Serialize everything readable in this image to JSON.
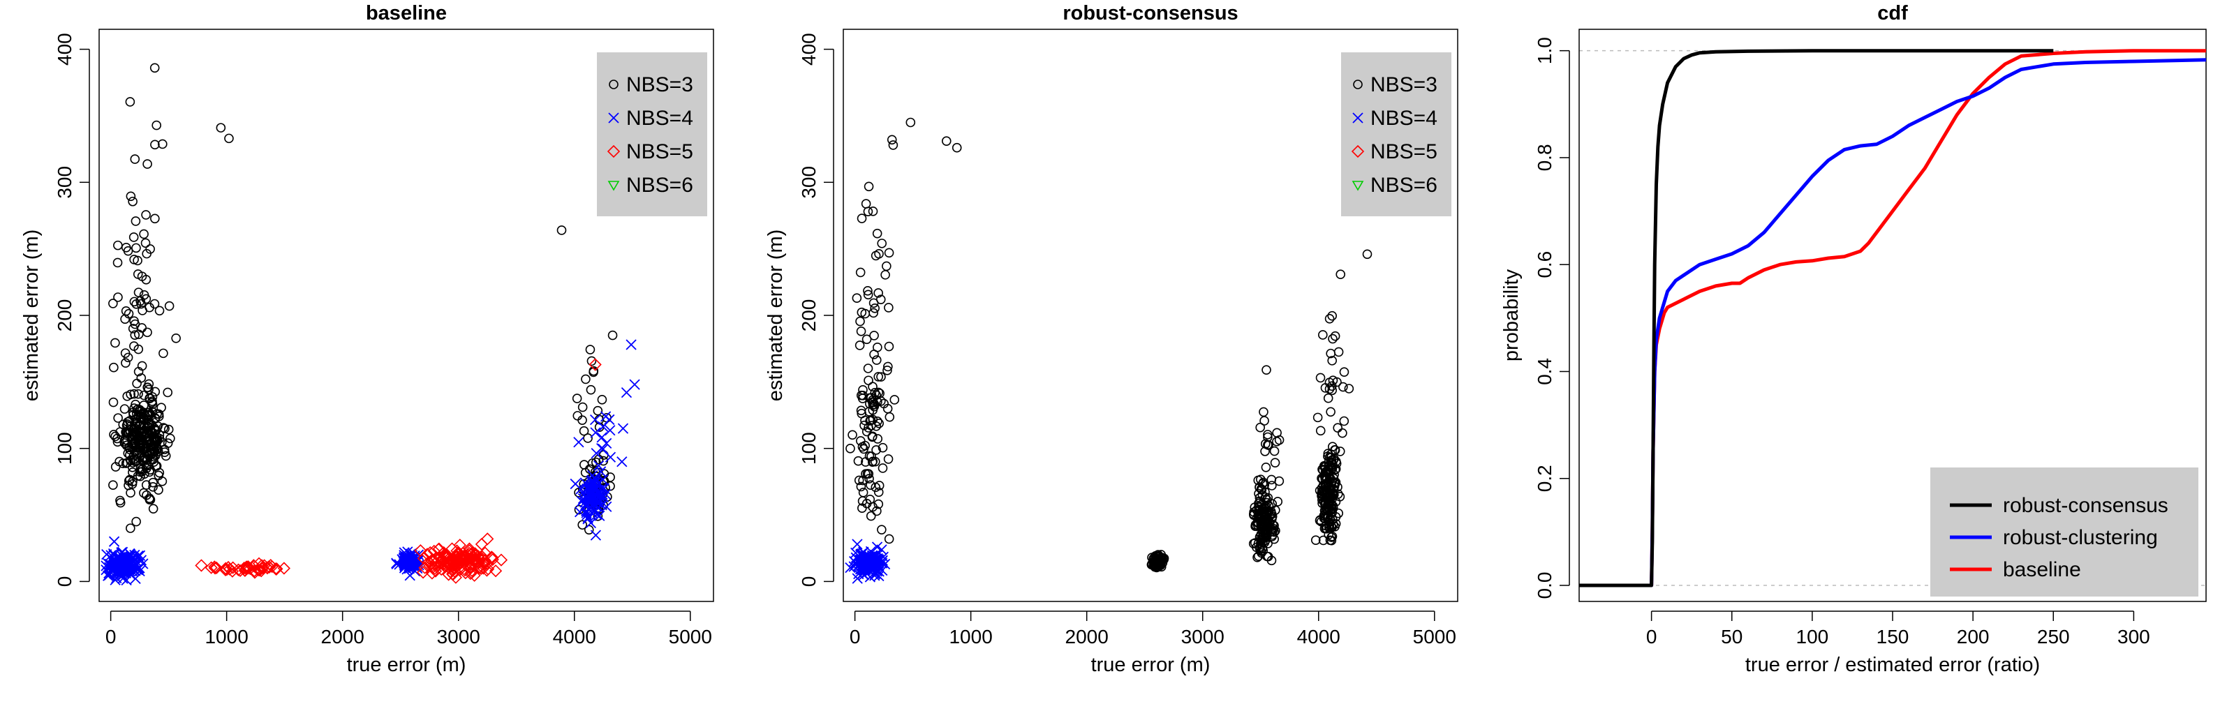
{
  "chart_data": [
    {
      "type": "scatter",
      "title": "baseline",
      "xlabel": "true error (m)",
      "ylabel": "estimated error (m)",
      "xlim": [
        -100,
        5200
      ],
      "ylim": [
        -15,
        415
      ],
      "xticks": [
        0,
        1000,
        2000,
        3000,
        4000,
        5000
      ],
      "yticks": [
        0,
        100,
        200,
        300,
        400
      ],
      "legend_position": "top-right",
      "series": [
        {
          "name": "NBS=3",
          "marker": "circle",
          "color": "#000000",
          "clusters": [
            {
              "x_mean": 280,
              "x_sd": 100,
              "y_mean": 105,
              "y_sd": 16,
              "n": 260
            },
            {
              "x_mean": 230,
              "x_sd": 120,
              "y_mean": 160,
              "y_sd": 40,
              "n": 55
            },
            {
              "x_mean": 280,
              "x_sd": 150,
              "y_mean": 270,
              "y_sd": 45,
              "n": 30
            },
            {
              "x_mean": 4180,
              "x_sd": 60,
              "y_mean": 70,
              "y_sd": 12,
              "n": 55
            },
            {
              "x_mean": 4180,
              "x_sd": 70,
              "y_mean": 140,
              "y_sd": 28,
              "n": 18
            }
          ],
          "points": [
            [
              380,
              386
            ],
            [
              950,
              341
            ],
            [
              1020,
              333
            ],
            [
              3890,
              264
            ],
            [
              170,
              40
            ],
            [
              220,
              45
            ],
            [
              4330,
              185
            ]
          ]
        },
        {
          "name": "NBS=4",
          "marker": "x",
          "color": "#0000ff",
          "clusters": [
            {
              "x_mean": 100,
              "x_sd": 70,
              "y_mean": 12,
              "y_sd": 4.5,
              "n": 160
            },
            {
              "x_mean": 2580,
              "x_sd": 45,
              "y_mean": 15,
              "y_sd": 3.5,
              "n": 90
            },
            {
              "x_mean": 4170,
              "x_sd": 55,
              "y_mean": 65,
              "y_sd": 9,
              "n": 90
            },
            {
              "x_mean": 4260,
              "x_sd": 70,
              "y_mean": 110,
              "y_sd": 12,
              "n": 14
            }
          ],
          "points": [
            [
              30,
              30
            ],
            [
              4490,
              178
            ],
            [
              4520,
              148
            ],
            [
              4450,
              142
            ],
            [
              4420,
              115
            ],
            [
              4410,
              90
            ]
          ]
        },
        {
          "name": "NBS=5",
          "marker": "diamond",
          "color": "#ff0000",
          "clusters": [
            {
              "x_mean": 1200,
              "x_sd": 140,
              "y_mean": 10,
              "y_sd": 1.3,
              "n": 45
            },
            {
              "x_mean": 3020,
              "x_sd": 140,
              "y_mean": 15,
              "y_sd": 5,
              "n": 150
            }
          ],
          "points": [
            [
              900,
              10
            ],
            [
              3250,
              32
            ],
            [
              3200,
              28
            ],
            [
              4180,
              163
            ]
          ]
        },
        {
          "name": "NBS=6",
          "marker": "triangle-down",
          "color": "#00cc00",
          "clusters": [],
          "points": []
        }
      ]
    },
    {
      "type": "scatter",
      "title": "robust-consensus",
      "xlabel": "true error (m)",
      "ylabel": "estimated error (m)",
      "xlim": [
        -100,
        5200
      ],
      "ylim": [
        -15,
        415
      ],
      "xticks": [
        0,
        1000,
        2000,
        3000,
        4000,
        5000
      ],
      "yticks": [
        0,
        100,
        200,
        300,
        400
      ],
      "legend_position": "top-right",
      "series": [
        {
          "name": "NBS=3",
          "marker": "circle",
          "color": "#000000",
          "clusters": [
            {
              "x_mean": 150,
              "x_sd": 80,
              "y_mean": 110,
              "y_sd": 40,
              "n": 95
            },
            {
              "x_mean": 170,
              "x_sd": 80,
              "y_mean": 230,
              "y_sd": 45,
              "n": 25
            },
            {
              "x_mean": 2620,
              "x_sd": 25,
              "y_mean": 15,
              "y_sd": 2.5,
              "n": 60
            },
            {
              "x_mean": 3530,
              "x_sd": 40,
              "y_mean": 45,
              "y_sd": 14,
              "n": 160
            },
            {
              "x_mean": 3550,
              "x_sd": 60,
              "y_mean": 95,
              "y_sd": 20,
              "n": 20
            },
            {
              "x_mean": 4090,
              "x_sd": 40,
              "y_mean": 65,
              "y_sd": 17,
              "n": 170
            },
            {
              "x_mean": 4110,
              "x_sd": 60,
              "y_mean": 150,
              "y_sd": 25,
              "n": 28
            }
          ],
          "points": [
            [
              480,
              345
            ],
            [
              790,
              331
            ],
            [
              880,
              326
            ],
            [
              320,
              332
            ],
            [
              330,
              328
            ],
            [
              4420,
              246
            ]
          ]
        },
        {
          "name": "NBS=4",
          "marker": "x",
          "color": "#0000ff",
          "clusters": [
            {
              "x_mean": 120,
              "x_sd": 60,
              "y_mean": 14,
              "y_sd": 4,
              "n": 130
            }
          ],
          "points": [
            [
              20,
              28
            ]
          ]
        },
        {
          "name": "NBS=5",
          "marker": "diamond",
          "color": "#ff0000",
          "clusters": [],
          "points": []
        },
        {
          "name": "NBS=6",
          "marker": "triangle-down",
          "color": "#00cc00",
          "clusters": [],
          "points": []
        }
      ]
    },
    {
      "type": "line",
      "title": "cdf",
      "xlabel": "true error / estimated error (ratio)",
      "ylabel": "probability",
      "xlim": [
        -45,
        345
      ],
      "ylim": [
        -0.03,
        1.04
      ],
      "xticks": [
        0,
        50,
        100,
        150,
        200,
        250,
        300
      ],
      "yticks": [
        0.0,
        0.2,
        0.4,
        0.6,
        0.8,
        1.0
      ],
      "hlines": [
        0,
        1
      ],
      "legend_position": "bottom-right",
      "series": [
        {
          "name": "robust-consensus",
          "color": "#000000",
          "x": [
            -45,
            0,
            0.5,
            1,
            1.5,
            2,
            3,
            4,
            5,
            7,
            10,
            15,
            20,
            25,
            30,
            40,
            60,
            100,
            150,
            200,
            250
          ],
          "y": [
            0,
            0,
            0.08,
            0.25,
            0.45,
            0.6,
            0.75,
            0.82,
            0.86,
            0.9,
            0.94,
            0.97,
            0.985,
            0.992,
            0.996,
            0.998,
            0.999,
            1.0,
            1.0,
            1.0,
            1.0
          ]
        },
        {
          "name": "robust-clustering",
          "color": "#0000ff",
          "x": [
            -45,
            0,
            0.5,
            1,
            2,
            3,
            5,
            8,
            10,
            15,
            20,
            30,
            40,
            50,
            60,
            70,
            80,
            90,
            100,
            110,
            120,
            130,
            140,
            150,
            160,
            170,
            180,
            190,
            200,
            210,
            220,
            230,
            250,
            270,
            300,
            345
          ],
          "y": [
            0,
            0,
            0.1,
            0.25,
            0.4,
            0.46,
            0.5,
            0.53,
            0.55,
            0.57,
            0.58,
            0.6,
            0.61,
            0.62,
            0.635,
            0.66,
            0.695,
            0.73,
            0.765,
            0.795,
            0.815,
            0.822,
            0.825,
            0.84,
            0.86,
            0.875,
            0.89,
            0.905,
            0.915,
            0.93,
            0.95,
            0.965,
            0.975,
            0.978,
            0.98,
            0.983
          ]
        },
        {
          "name": "baseline",
          "color": "#ff0000",
          "x": [
            -45,
            0,
            0.5,
            1,
            2,
            3,
            5,
            8,
            10,
            20,
            30,
            40,
            50,
            55,
            60,
            70,
            80,
            90,
            100,
            110,
            120,
            125,
            130,
            135,
            140,
            150,
            160,
            170,
            180,
            190,
            200,
            210,
            220,
            230,
            250,
            270,
            300,
            345
          ],
          "y": [
            0,
            0,
            0.1,
            0.25,
            0.4,
            0.45,
            0.48,
            0.51,
            0.52,
            0.535,
            0.55,
            0.56,
            0.565,
            0.565,
            0.575,
            0.59,
            0.6,
            0.605,
            0.607,
            0.612,
            0.615,
            0.62,
            0.625,
            0.64,
            0.66,
            0.7,
            0.74,
            0.78,
            0.83,
            0.88,
            0.92,
            0.95,
            0.975,
            0.99,
            0.995,
            0.998,
            1.0,
            1.0
          ]
        }
      ]
    }
  ]
}
